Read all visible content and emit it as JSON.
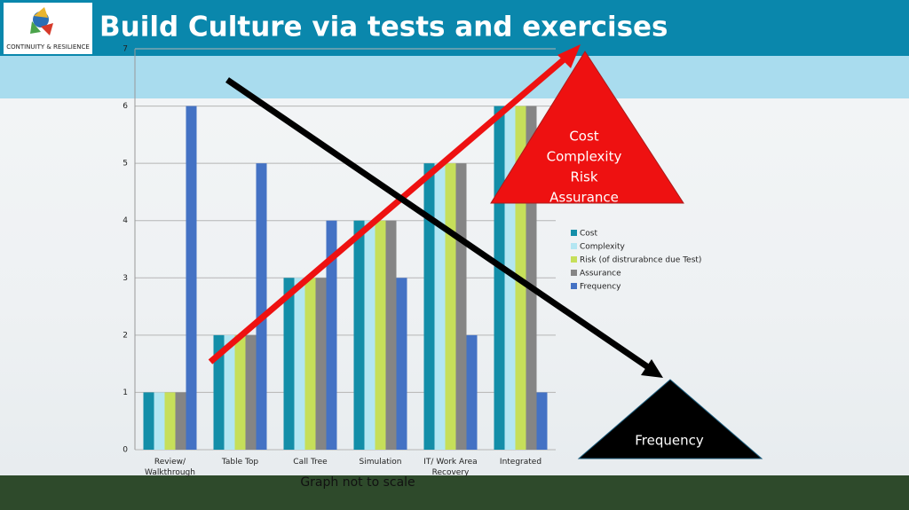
{
  "chart_data": {
    "type": "bar",
    "title": "Build Culture via tests and exercises",
    "logo_text": "CONTINUITY & RESILIENCE",
    "categories": [
      "Review/ Walkthrough",
      "Table Top",
      "Call Tree",
      "Simulation",
      "IT/ Work Area Recovery",
      "Integrated"
    ],
    "series": [
      {
        "name": "Cost",
        "color": "#138ea8",
        "values": [
          1,
          2,
          3,
          4,
          5,
          6
        ]
      },
      {
        "name": "Complexity",
        "color": "#b3e6f2",
        "values": [
          1,
          2,
          3,
          4,
          5,
          6
        ]
      },
      {
        "name": "Risk (of distrurabnce due Test)",
        "color": "#c6df5a",
        "values": [
          1,
          2,
          3,
          4,
          5,
          6
        ]
      },
      {
        "name": "Assurance",
        "color": "#858585",
        "values": [
          1,
          2,
          3,
          4,
          5,
          6
        ]
      },
      {
        "name": "Frequency",
        "color": "#4472c4",
        "values": [
          6,
          5,
          4,
          3,
          2,
          1
        ]
      }
    ],
    "ylim": [
      0,
      7
    ],
    "yticks": [
      0,
      1,
      2,
      3,
      4,
      5,
      6,
      7
    ],
    "grid": true,
    "legend": "right",
    "annotations": {
      "red_triangle": [
        "Cost",
        "Complexity",
        "Risk",
        "Assurance"
      ],
      "black_triangle": "Frequency",
      "note": "Graph not to scale"
    }
  }
}
